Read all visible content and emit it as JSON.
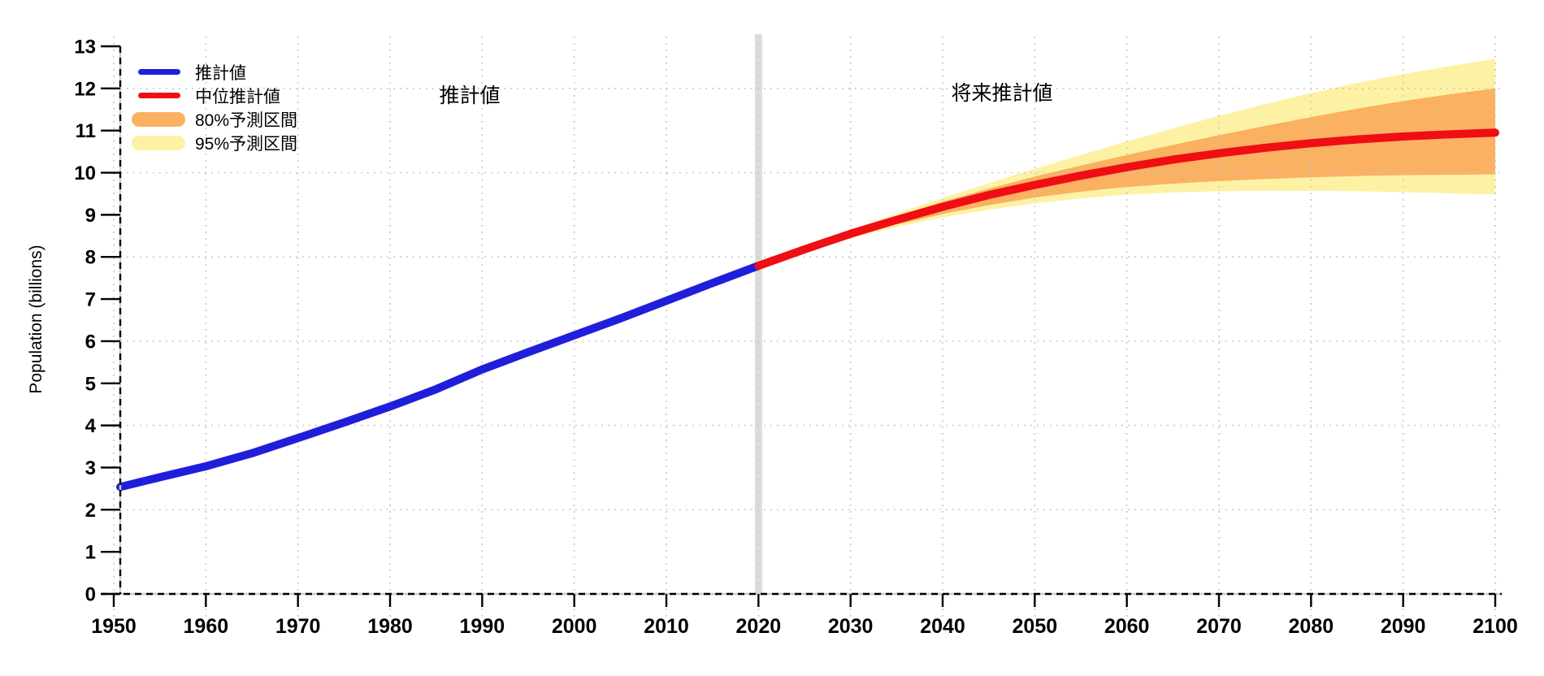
{
  "figure": {
    "y_axis_title": "Population (billions)",
    "annotations": [
      {
        "text": "推計値"
      },
      {
        "text": "将来推計値"
      }
    ],
    "legend": {
      "position": "upper-left",
      "items": [
        {
          "label": "推計値",
          "swatch": "line",
          "color_key": "historical"
        },
        {
          "label": "中位推計値",
          "swatch": "line",
          "color_key": "median"
        },
        {
          "label": "80%予測区間",
          "swatch": "band",
          "color_key": "pi80"
        },
        {
          "label": "95%予測区間",
          "swatch": "band",
          "color_key": "pi95"
        }
      ]
    }
  },
  "colors": {
    "historical": "#1f1fdb",
    "median": "#ef0e14",
    "pi80": "#fab162",
    "pi95": "#fdf2a3",
    "grid": "#c5c5c5",
    "axis_underlay": "#cccccc",
    "axis": "#000000",
    "divider_2020": "#dcdcdc",
    "text": "#000000"
  },
  "chart_data": {
    "type": "line",
    "title": "",
    "xlabel": "",
    "ylabel": "Population (billions)",
    "xlim": [
      1945,
      2101
    ],
    "ylim": [
      0,
      13
    ],
    "grid": "dotted",
    "legend_position": "upper-left",
    "x_ticks": [
      1950,
      1960,
      1970,
      1980,
      1990,
      2000,
      2010,
      2020,
      2030,
      2040,
      2050,
      2060,
      2070,
      2080,
      2090,
      2100
    ],
    "y_ticks": [
      0,
      1,
      2,
      3,
      4,
      5,
      6,
      7,
      8,
      9,
      10,
      11,
      12,
      13
    ],
    "grid_y_values": [
      2,
      4,
      6,
      8,
      10,
      12
    ],
    "divider_year": 2020,
    "series": [
      {
        "name": "推計値 (historical estimates)",
        "color_key": "historical",
        "x": [
          1950,
          1955,
          1960,
          1965,
          1970,
          1975,
          1980,
          1985,
          1990,
          1995,
          2000,
          2005,
          2010,
          2015,
          2020
        ],
        "y": [
          2.54,
          2.77,
          3.03,
          3.34,
          3.7,
          4.07,
          4.45,
          4.86,
          5.33,
          5.74,
          6.14,
          6.54,
          6.96,
          7.38,
          7.79
        ]
      },
      {
        "name": "中位推計値 (median projection)",
        "color_key": "median",
        "x": [
          2020,
          2025,
          2030,
          2035,
          2040,
          2045,
          2050,
          2055,
          2060,
          2065,
          2070,
          2075,
          2080,
          2085,
          2090,
          2095,
          2100
        ],
        "y": [
          7.79,
          8.18,
          8.55,
          8.88,
          9.19,
          9.47,
          9.71,
          9.93,
          10.13,
          10.31,
          10.46,
          10.59,
          10.7,
          10.79,
          10.86,
          10.91,
          10.95
        ]
      }
    ],
    "bands": [
      {
        "name": "95%予測区間 (95% prediction interval)",
        "color_key": "pi95",
        "x": [
          2020,
          2025,
          2030,
          2035,
          2040,
          2045,
          2050,
          2055,
          2060,
          2065,
          2070,
          2075,
          2080,
          2085,
          2090,
          2095,
          2100
        ],
        "lo": [
          7.79,
          8.13,
          8.44,
          8.71,
          8.94,
          9.12,
          9.27,
          9.39,
          9.48,
          9.53,
          9.56,
          9.57,
          9.57,
          9.56,
          9.54,
          9.51,
          9.48
        ],
        "hi": [
          7.79,
          8.23,
          8.64,
          9.03,
          9.4,
          9.75,
          10.09,
          10.42,
          10.74,
          11.05,
          11.35,
          11.63,
          11.89,
          12.13,
          12.34,
          12.53,
          12.7
        ]
      },
      {
        "name": "80%予測区間 (80% prediction interval)",
        "color_key": "pi80",
        "x": [
          2020,
          2025,
          2030,
          2035,
          2040,
          2045,
          2050,
          2055,
          2060,
          2065,
          2070,
          2075,
          2080,
          2085,
          2090,
          2095,
          2100
        ],
        "lo": [
          7.79,
          8.15,
          8.48,
          8.77,
          9.02,
          9.23,
          9.41,
          9.55,
          9.66,
          9.74,
          9.8,
          9.85,
          9.89,
          9.92,
          9.94,
          9.95,
          9.96
        ],
        "hi": [
          7.79,
          8.21,
          8.6,
          8.97,
          9.31,
          9.62,
          9.91,
          10.17,
          10.42,
          10.66,
          10.89,
          11.11,
          11.32,
          11.52,
          11.7,
          11.86,
          12.0
        ]
      }
    ]
  }
}
